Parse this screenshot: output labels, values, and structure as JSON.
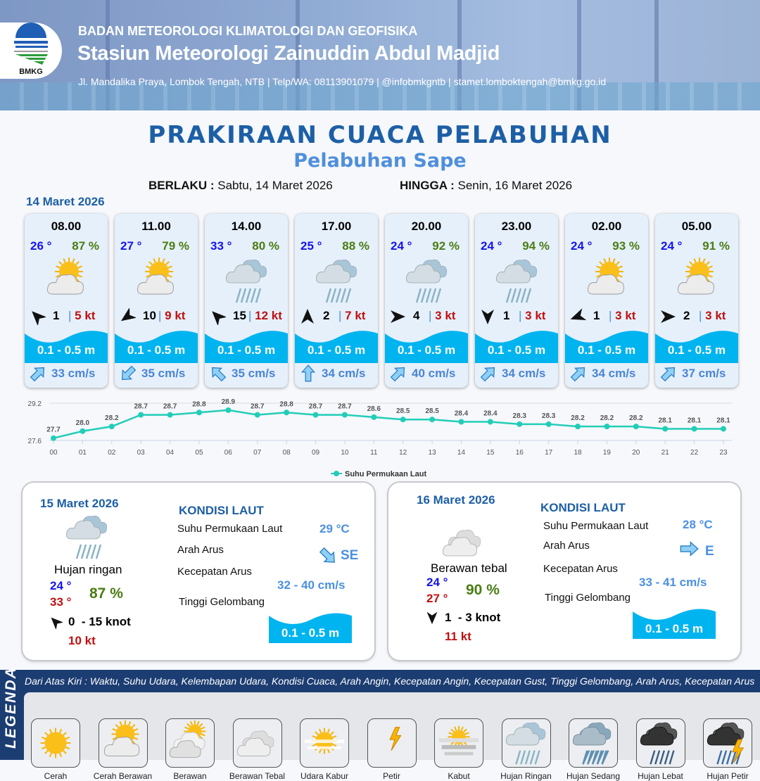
{
  "header": {
    "org": "BADAN METEOROLOGI KLIMATOLOGI DAN GEOFISIKA",
    "station": "Stasiun Meteorologi Zainuddin Abdul Madjid",
    "contact": "Jl. Mandalika Praya, Lombok Tengah, NTB | Telp/WA: 08113901079 | @infobmkgntb | stamet.lomboktengah@bmkg.go.id",
    "logo_text": "BMKG"
  },
  "title": "PRAKIRAAN CUACA PELABUHAN",
  "subtitle": "Pelabuhan Sape",
  "validity": {
    "from_label": "BERLAKU :",
    "from": "Sabtu, 14 Maret 2026",
    "to_label": "HINGGA :",
    "to": "Senin, 16 Maret 2026"
  },
  "day1_date": "14 Maret 2026",
  "colors": {
    "accent": "#1d5fa6",
    "temp": "#1414f0",
    "humidity": "#4a7d12",
    "gust": "#c01010",
    "wave": "#00b4f0",
    "sst_line": "#22cdb8"
  },
  "hourly": [
    {
      "time": "08.00",
      "temp": "26 °",
      "rh": "87 %",
      "icon": "cerah-berawan",
      "wind_dir_deg": -45,
      "wind": "1",
      "gust": "5 kt",
      "wave": "0.1 - 0.5 m",
      "current_dir_deg": 45,
      "current": "33 cm/s"
    },
    {
      "time": "11.00",
      "temp": "27 °",
      "rh": "79 %",
      "icon": "cerah-berawan",
      "wind_dir_deg": 235,
      "wind": "10",
      "gust": "9 kt",
      "wave": "0.1 - 0.5 m",
      "current_dir_deg": 225,
      "current": "35 cm/s"
    },
    {
      "time": "14.00",
      "temp": "33 °",
      "rh": "80 %",
      "icon": "hujan-ringan",
      "wind_dir_deg": -45,
      "wind": "15",
      "gust": "12 kt",
      "wave": "0.1 - 0.5 m",
      "current_dir_deg": 315,
      "current": "35 cm/s"
    },
    {
      "time": "17.00",
      "temp": "25 °",
      "rh": "88 %",
      "icon": "hujan-ringan",
      "wind_dir_deg": 0,
      "wind": "2",
      "gust": "7 kt",
      "wave": "0.1 - 0.5 m",
      "current_dir_deg": 0,
      "current": "34 cm/s"
    },
    {
      "time": "20.00",
      "temp": "24 °",
      "rh": "92 %",
      "icon": "hujan-ringan",
      "wind_dir_deg": 90,
      "wind": "4",
      "gust": "3 kt",
      "wave": "0.1 - 0.5 m",
      "current_dir_deg": 45,
      "current": "40 cm/s"
    },
    {
      "time": "23.00",
      "temp": "24 °",
      "rh": "94 %",
      "icon": "hujan-ringan",
      "wind_dir_deg": 180,
      "wind": "1",
      "gust": "3 kt",
      "wave": "0.1 - 0.5 m",
      "current_dir_deg": 45,
      "current": "34 cm/s"
    },
    {
      "time": "02.00",
      "temp": "24 °",
      "rh": "93 %",
      "icon": "cerah-berawan",
      "wind_dir_deg": 250,
      "wind": "1",
      "gust": "3 kt",
      "wave": "0.1 - 0.5 m",
      "current_dir_deg": 45,
      "current": "34 cm/s"
    },
    {
      "time": "05.00",
      "temp": "24 °",
      "rh": "91 %",
      "icon": "cerah-berawan",
      "wind_dir_deg": 90,
      "wind": "2",
      "gust": "3 kt",
      "wave": "0.1 - 0.5 m",
      "current_dir_deg": 45,
      "current": "37 cm/s"
    }
  ],
  "chart_data": {
    "type": "line",
    "x": [
      "00",
      "01",
      "02",
      "03",
      "04",
      "05",
      "06",
      "07",
      "08",
      "09",
      "10",
      "11",
      "12",
      "13",
      "14",
      "15",
      "16",
      "17",
      "18",
      "19",
      "20",
      "21",
      "22",
      "23"
    ],
    "series": [
      {
        "name": "Suhu Permukaan Laut",
        "values": [
          27.7,
          28.0,
          28.2,
          28.7,
          28.7,
          28.8,
          28.9,
          28.7,
          28.8,
          28.7,
          28.7,
          28.6,
          28.5,
          28.5,
          28.4,
          28.4,
          28.3,
          28.3,
          28.2,
          28.2,
          28.2,
          28.1,
          28.1,
          28.1
        ]
      }
    ],
    "yticks": [
      "29.2",
      "27.6"
    ],
    "ylim": [
      27.6,
      29.2
    ],
    "legend": "bottom",
    "grid": true
  },
  "days": [
    {
      "date": "15 Maret 2026",
      "icon": "hujan-ringan",
      "condition": "Hujan ringan",
      "tmin": "24 °",
      "tmax": "33 °",
      "rh": "87 %",
      "wind_dir_deg": -45,
      "wind": "0  - 15 knot",
      "gust": "10 kt",
      "kondisi_title": "KONDISI LAUT",
      "sst_label": "Suhu Permukaan Laut",
      "sst": "29 °C",
      "arus_label": "Arah Arus",
      "arus": "SE",
      "arus_dir_deg": 135,
      "kec_label": "Kecepatan Arus",
      "kec": "32 - 40 cm/s",
      "tg_label": "Tinggi Gelombang",
      "wave": "0.1 - 0.5 m"
    },
    {
      "date": "16 Maret 2026",
      "icon": "berawan-tebal",
      "condition": "Berawan tebal",
      "tmin": "24 °",
      "tmax": "27 °",
      "rh": "90 %",
      "wind_dir_deg": 180,
      "wind": "1  - 3 knot",
      "gust": "11 kt",
      "kondisi_title": "KONDISI LAUT",
      "sst_label": "Suhu Permukaan Laut",
      "sst": "28 °C",
      "arus_label": "Arah Arus",
      "arus": "E",
      "arus_dir_deg": 90,
      "kec_label": "Kecepatan Arus",
      "kec": "33 - 41 cm/s",
      "tg_label": "Tinggi Gelombang",
      "wave": "0.1 - 0.5 m"
    }
  ],
  "legend": {
    "title": "LEGENDA",
    "description": "Dari Atas Kiri : Waktu, Suhu Udara, Kelembapan Udara, Kondisi Cuaca, Arah Angin, Kecepatan Angin, Kecepatan Gust, Tinggi Gelombang, Arah Arus, Kecepatan Arus",
    "items": [
      {
        "label": "Cerah",
        "icon": "cerah"
      },
      {
        "label": "Cerah Berawan",
        "icon": "cerah-berawan"
      },
      {
        "label": "Berawan",
        "icon": "berawan"
      },
      {
        "label": "Berawan Tebal",
        "icon": "berawan-tebal"
      },
      {
        "label": "Udara Kabur",
        "icon": "udara-kabur"
      },
      {
        "label": "Petir",
        "icon": "petir"
      },
      {
        "label": "Kabut",
        "icon": "kabut"
      },
      {
        "label": "Hujan Ringan",
        "icon": "hujan-ringan"
      },
      {
        "label": "Hujan Sedang",
        "icon": "hujan-sedang"
      },
      {
        "label": "Hujan Lebat",
        "icon": "hujan-lebat"
      },
      {
        "label": "Hujan Petir",
        "icon": "hujan-petir"
      }
    ]
  }
}
